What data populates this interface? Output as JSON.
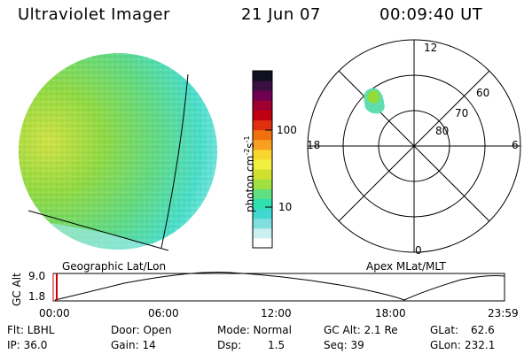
{
  "header": {
    "title": "Ultraviolet Imager",
    "date": "21 Jun 07",
    "time": "00:09:40 UT"
  },
  "geographic_panel": {
    "label": "Geographic Lat/Lon"
  },
  "colorbar": {
    "unit_label": "photon cm",
    "unit_exp1": "-2",
    "unit_mid": "s",
    "unit_exp2": "-1",
    "scale": "log",
    "ticks": [
      {
        "label": "100",
        "value": 100
      },
      {
        "label": "10",
        "value": 10
      }
    ],
    "colors": [
      "#ffffff",
      "#ccf0f0",
      "#80e0e0",
      "#40d8d0",
      "#30e0b0",
      "#60e080",
      "#a0e040",
      "#d0e030",
      "#f0f040",
      "#f8d830",
      "#f8a020",
      "#f07010",
      "#e03010",
      "#c00010",
      "#a00030",
      "#700050",
      "#3a1040",
      "#101020"
    ]
  },
  "polar_panel": {
    "label": "Apex MLat/MLT",
    "mlt_labels": [
      "12",
      "18",
      "6",
      "0"
    ],
    "lat_labels": [
      "60",
      "70",
      "80"
    ]
  },
  "timeline": {
    "ylabel": "GC Alt",
    "yticks": [
      "9.0",
      "1.8"
    ],
    "xticks": [
      "00:00",
      "06:00",
      "12:00",
      "18:00",
      "23:59"
    ],
    "current_time_hours": 0.16
  },
  "info": {
    "flt": "Flt: LBHL",
    "ip": "IP: 36.0",
    "door": "Door: Open",
    "gain": "Gain: 14",
    "mode": "Mode: Normal",
    "dsp_label": "Dsp:",
    "dsp_value": "1.5",
    "gc_alt": "GC Alt: 2.1 Re",
    "seq": "Seq: 39",
    "glat_label": "GLat:",
    "glat_value": "62.6",
    "glon_label": "GLon:",
    "glon_value": "232.1"
  },
  "colors": {
    "disk_light": "#4edec8",
    "disk_green": "#8fdc40",
    "disk_yellow": "#c8e040",
    "patch_green": "#8adc3a",
    "patch_cyan": "#4fd8d0"
  }
}
